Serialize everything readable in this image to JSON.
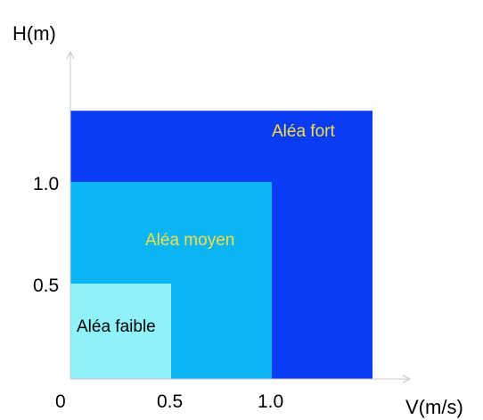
{
  "chart_data": {
    "type": "heatmap",
    "xlabel": "V(m/s)",
    "ylabel": "H(m)",
    "origin_label": "0",
    "x_ticks": [
      {
        "value": 0.5,
        "label": "0.5"
      },
      {
        "value": 1.0,
        "label": "1.0"
      }
    ],
    "y_ticks": [
      {
        "value": 0.5,
        "label": "0.5"
      },
      {
        "value": 1.0,
        "label": "1.0"
      }
    ],
    "xlim": [
      0,
      1.5
    ],
    "ylim": [
      0,
      1.5
    ],
    "zones": [
      {
        "name": "fort",
        "label": "Aléa fort",
        "v_max": 1.5,
        "h_max": 1.35,
        "fill": "#0a3cf5",
        "text_color": "#f0e04a"
      },
      {
        "name": "moyen",
        "label": "Aléa moyen",
        "v_max": 1.0,
        "h_max": 1.0,
        "fill": "#0bb4f2",
        "text_color": "#f0e04a"
      },
      {
        "name": "faible",
        "label": "Aléa faible",
        "v_max": 0.5,
        "h_max": 0.5,
        "fill": "#8ff2fa",
        "text_color": "#000000"
      }
    ],
    "grid": false,
    "legend": "none"
  }
}
